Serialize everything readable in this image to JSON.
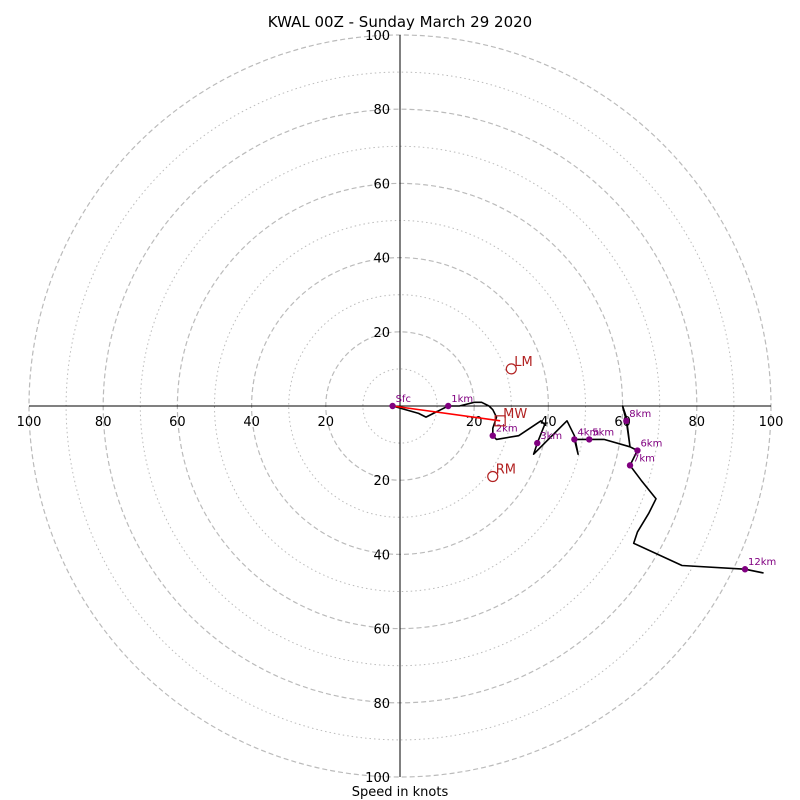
{
  "chart_data": {
    "type": "hodograph",
    "title": "KWAL 00Z - Sunday March 29 2020",
    "xlabel": "Speed in knots",
    "radius_max": 100,
    "rings_major": [
      20,
      40,
      60,
      80,
      100
    ],
    "rings_minor": [
      10,
      30,
      50,
      70,
      90
    ],
    "ticks": {
      "x_left": [
        "100",
        "80",
        "60",
        "40",
        "20"
      ],
      "x_right": [
        "20",
        "40",
        "60",
        "80",
        "100"
      ],
      "y_top": [
        "100",
        "80",
        "60",
        "40",
        "20"
      ],
      "y_bottom": [
        "20",
        "40",
        "60",
        "80",
        "100"
      ]
    },
    "colors": {
      "trace": "#000000",
      "points": "#800080",
      "storm": "#b22222",
      "shear": "#ff0000",
      "grid": "#bbbbbb"
    },
    "trace": [
      [
        -2,
        0
      ],
      [
        5,
        -2
      ],
      [
        7,
        -3
      ],
      [
        9,
        -2
      ],
      [
        11,
        -1
      ],
      [
        13,
        0
      ],
      [
        16,
        0
      ],
      [
        20,
        1
      ],
      [
        22,
        1
      ],
      [
        24,
        0
      ],
      [
        25,
        -1
      ],
      [
        26,
        -3
      ],
      [
        25,
        -6
      ],
      [
        25,
        -8
      ],
      [
        26,
        -9
      ],
      [
        32,
        -8
      ],
      [
        38,
        -4
      ],
      [
        39,
        -5
      ],
      [
        37,
        -10
      ],
      [
        36,
        -13
      ],
      [
        39,
        -10
      ],
      [
        44,
        -5
      ],
      [
        45,
        -4
      ],
      [
        47,
        -8
      ],
      [
        48,
        -13
      ],
      [
        47,
        -9
      ],
      [
        50,
        -9
      ],
      [
        55,
        -9
      ],
      [
        62,
        -11
      ],
      [
        61,
        -4
      ],
      [
        60,
        0
      ],
      [
        61,
        -3
      ],
      [
        62,
        -11
      ],
      [
        64,
        -12
      ],
      [
        62,
        -16
      ],
      [
        65,
        -20
      ],
      [
        69,
        -25
      ],
      [
        67,
        -29
      ],
      [
        64,
        -34
      ],
      [
        63,
        -37
      ],
      [
        76,
        -43
      ],
      [
        93,
        -44
      ],
      [
        98,
        -45
      ]
    ],
    "height_points": [
      {
        "label": "Sfc",
        "x": -2,
        "y": 0
      },
      {
        "label": "1km",
        "x": 13,
        "y": 0
      },
      {
        "label": "2km",
        "x": 25,
        "y": -8
      },
      {
        "label": "3km",
        "x": 37,
        "y": -10
      },
      {
        "label": "4km",
        "x": 47,
        "y": -9
      },
      {
        "label": "5km",
        "x": 51,
        "y": -9
      },
      {
        "label": "6km",
        "x": 64,
        "y": -12
      },
      {
        "label": "7km",
        "x": 62,
        "y": -16
      },
      {
        "label": "8km",
        "x": 61,
        "y": -4
      },
      {
        "label": "12km",
        "x": 93,
        "y": -44
      }
    ],
    "storm_motions": [
      {
        "label": "LM",
        "x": 30,
        "y": 10,
        "marker": "circle"
      },
      {
        "label": "MW",
        "x": 27,
        "y": -4,
        "marker": "square"
      },
      {
        "label": "RM",
        "x": 25,
        "y": -19,
        "marker": "circle"
      }
    ],
    "shear_vector": {
      "from": [
        -2,
        0
      ],
      "to": [
        27,
        -4
      ]
    }
  }
}
